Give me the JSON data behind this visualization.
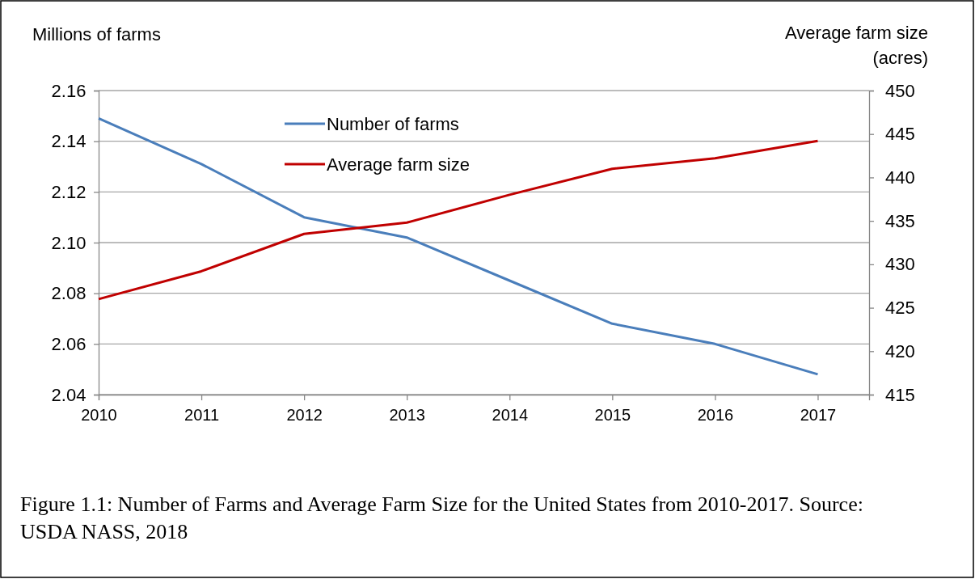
{
  "chart_data": {
    "type": "line",
    "ylabel": "Millions of farms",
    "y2label": "Average farm size\n(acres)",
    "x": [
      2010,
      2011,
      2012,
      2013,
      2014,
      2015,
      2016,
      2017
    ],
    "xlim": [
      2010,
      2017.5
    ],
    "xticks": [
      2010,
      2011,
      2012,
      2013,
      2014,
      2015,
      2016,
      2017
    ],
    "ylim": [
      2.04,
      2.16
    ],
    "yticks": [
      {
        "value": 2.04,
        "label": "2.04"
      },
      {
        "value": 2.06,
        "label": "2.06"
      },
      {
        "value": 2.08,
        "label": "2.08"
      },
      {
        "value": 2.1,
        "label": "2.10"
      },
      {
        "value": 2.12,
        "label": "2.12"
      },
      {
        "value": 2.14,
        "label": "2.14"
      },
      {
        "value": 2.16,
        "label": "2.16"
      }
    ],
    "y2lim": [
      415,
      450
    ],
    "y2ticks": [
      415,
      420,
      425,
      430,
      435,
      440,
      445,
      450
    ],
    "series": [
      {
        "name": "Number of farms",
        "color": "#4a7ebb",
        "values": [
          2.149,
          2.131,
          2.11,
          2.102,
          2.085,
          2.068,
          2.06,
          2.048
        ]
      },
      {
        "name": "Average farm size",
        "color": "#c00000",
        "axis": "y2",
        "values": [
          426.0,
          429.2,
          433.5,
          434.8,
          438.0,
          441.0,
          442.2,
          444.2
        ]
      }
    ],
    "grid": "y",
    "legend": "top",
    "marker": "none",
    "line_style": "solid",
    "annotations": [
      "Figure 1.1:  Number of Farms and Average Farm Size for the United States from 2010-2017. Source: USDA NASS, 2018"
    ]
  }
}
